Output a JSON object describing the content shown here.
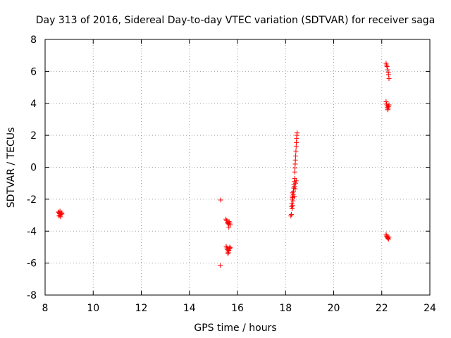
{
  "chart_data": {
    "type": "scatter",
    "title": "Day 313 of 2016, Sidereal Day-to-day VTEC variation (SDTVAR) for receiver saga",
    "xlabel": "GPS time / hours",
    "ylabel": "SDTVAR / TECUs",
    "xlim": [
      8,
      24
    ],
    "ylim": [
      -8,
      8
    ],
    "xticks": [
      8,
      10,
      12,
      14,
      16,
      18,
      20,
      22,
      24
    ],
    "yticks": [
      -8,
      -6,
      -4,
      -2,
      0,
      2,
      4,
      6,
      8
    ],
    "xtick_labels": [
      "8",
      "10",
      "12",
      "14",
      "16",
      "18",
      "20",
      "22",
      "24"
    ],
    "ytick_labels": [
      "-8",
      "-6",
      "-4",
      "-2",
      "0",
      "2",
      "4",
      "6",
      "8"
    ],
    "grid": true,
    "marker": "+",
    "color": "#ff0000",
    "series": [
      {
        "name": "SDTVAR",
        "points": [
          [
            8.55,
            -2.8
          ],
          [
            8.58,
            -2.85
          ],
          [
            8.6,
            -2.9
          ],
          [
            8.62,
            -3.0
          ],
          [
            8.64,
            -3.1
          ],
          [
            8.66,
            -2.95
          ],
          [
            8.68,
            -2.85
          ],
          [
            8.7,
            -2.9
          ],
          [
            8.58,
            -3.05
          ],
          [
            8.62,
            -2.75
          ],
          [
            15.3,
            -2.05
          ],
          [
            15.28,
            -6.15
          ],
          [
            15.52,
            -3.25
          ],
          [
            15.55,
            -3.35
          ],
          [
            15.58,
            -3.45
          ],
          [
            15.6,
            -3.5
          ],
          [
            15.62,
            -3.55
          ],
          [
            15.65,
            -3.4
          ],
          [
            15.68,
            -3.5
          ],
          [
            15.7,
            -3.6
          ],
          [
            15.64,
            -3.75
          ],
          [
            15.53,
            -4.95
          ],
          [
            15.56,
            -5.05
          ],
          [
            15.58,
            -5.15
          ],
          [
            15.6,
            -5.25
          ],
          [
            15.62,
            -5.35
          ],
          [
            15.64,
            -5.2
          ],
          [
            15.66,
            -5.1
          ],
          [
            15.68,
            -5.0
          ],
          [
            15.7,
            -5.05
          ],
          [
            15.6,
            -5.4
          ],
          [
            18.22,
            -3.05
          ],
          [
            18.24,
            -2.95
          ],
          [
            18.25,
            -2.45
          ],
          [
            18.26,
            -2.25
          ],
          [
            18.27,
            -2.0
          ],
          [
            18.28,
            -1.8
          ],
          [
            18.29,
            -1.6
          ],
          [
            18.3,
            -1.9
          ],
          [
            18.31,
            -2.1
          ],
          [
            18.32,
            -1.7
          ],
          [
            18.33,
            -1.5
          ],
          [
            18.34,
            -1.3
          ],
          [
            18.35,
            -1.1
          ],
          [
            18.36,
            -0.9
          ],
          [
            18.37,
            -1.2
          ],
          [
            18.38,
            -0.7
          ],
          [
            18.38,
            -0.3
          ],
          [
            18.39,
            -0.05
          ],
          [
            18.4,
            0.2
          ],
          [
            18.41,
            0.45
          ],
          [
            18.42,
            0.7
          ],
          [
            18.43,
            1.0
          ],
          [
            18.44,
            1.3
          ],
          [
            18.45,
            1.55
          ],
          [
            18.46,
            1.8
          ],
          [
            18.47,
            2.0
          ],
          [
            18.48,
            2.15
          ],
          [
            18.4,
            -1.35
          ],
          [
            18.42,
            -1.0
          ],
          [
            18.44,
            -0.85
          ],
          [
            18.36,
            -1.85
          ],
          [
            18.3,
            -2.4
          ],
          [
            18.27,
            -2.6
          ],
          [
            22.18,
            6.5
          ],
          [
            22.2,
            6.4
          ],
          [
            22.22,
            6.3
          ],
          [
            22.25,
            6.1
          ],
          [
            22.27,
            5.95
          ],
          [
            22.28,
            5.8
          ],
          [
            22.3,
            5.55
          ],
          [
            22.18,
            4.1
          ],
          [
            22.2,
            3.95
          ],
          [
            22.22,
            3.85
          ],
          [
            22.24,
            3.75
          ],
          [
            22.26,
            3.65
          ],
          [
            22.28,
            3.8
          ],
          [
            22.3,
            3.9
          ],
          [
            22.25,
            3.6
          ],
          [
            22.18,
            -4.2
          ],
          [
            22.2,
            -4.3
          ],
          [
            22.22,
            -4.35
          ],
          [
            22.24,
            -4.4
          ],
          [
            22.26,
            -4.45
          ],
          [
            22.28,
            -4.5
          ],
          [
            22.3,
            -4.38
          ]
        ]
      }
    ]
  }
}
